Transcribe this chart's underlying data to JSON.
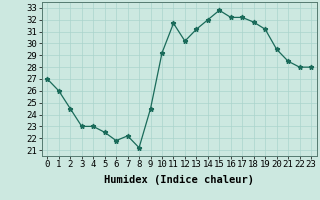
{
  "x": [
    0,
    1,
    2,
    3,
    4,
    5,
    6,
    7,
    8,
    9,
    10,
    11,
    12,
    13,
    14,
    15,
    16,
    17,
    18,
    19,
    20,
    21,
    22,
    23
  ],
  "y": [
    27,
    26,
    24.5,
    23,
    23,
    22.5,
    21.8,
    22.2,
    21.2,
    24.5,
    29.2,
    31.7,
    30.2,
    31.2,
    32.0,
    32.8,
    32.2,
    32.2,
    31.8,
    31.2,
    29.5,
    28.5,
    28,
    28
  ],
  "line_color": "#1a6b5a",
  "marker": "*",
  "bg_color": "#cce8e0",
  "grid_color": "#aad4cc",
  "ylabel_values": [
    21,
    22,
    23,
    24,
    25,
    26,
    27,
    28,
    29,
    30,
    31,
    32,
    33
  ],
  "ylim": [
    20.5,
    33.5
  ],
  "xlim": [
    -0.5,
    23.5
  ],
  "xlabel": "Humidex (Indice chaleur)",
  "tick_fontsize": 6.5,
  "label_fontsize": 7.5
}
